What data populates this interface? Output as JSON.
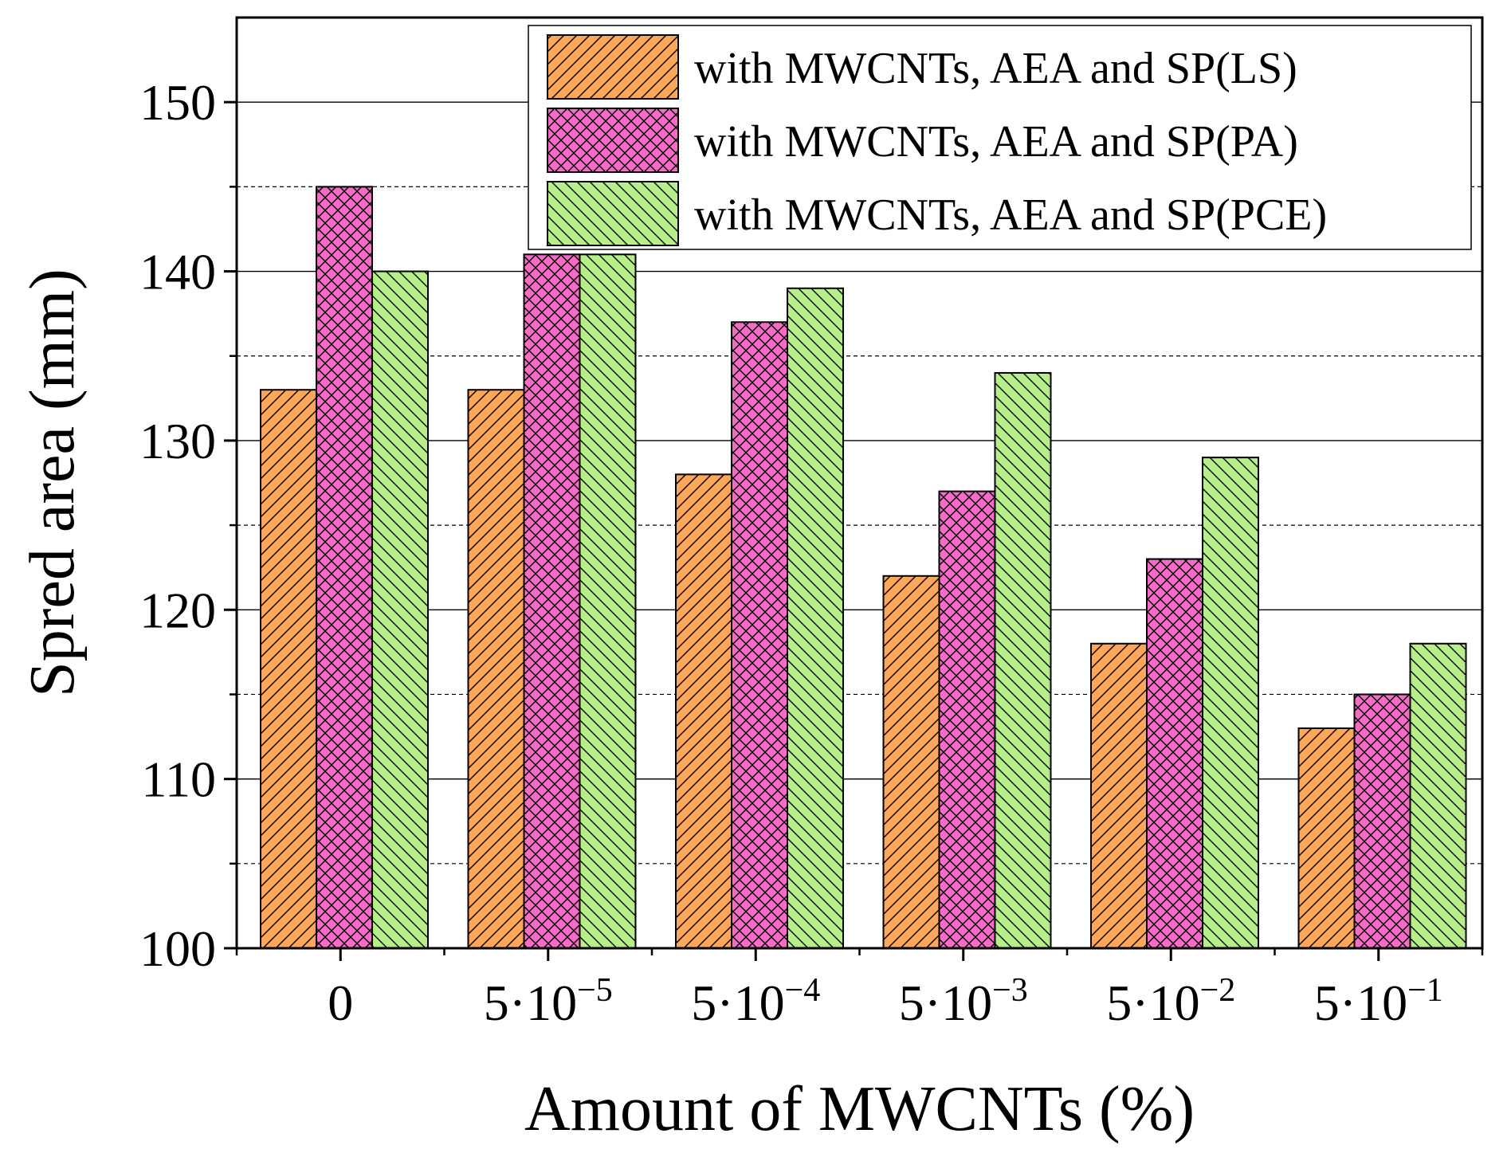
{
  "chart_data": {
    "type": "bar",
    "title": "",
    "xlabel": "Amount of MWCNTs (%)",
    "ylabel": "Spred area (mm)",
    "ylim": [
      100,
      155
    ],
    "yticks": [
      100,
      110,
      120,
      130,
      140,
      150
    ],
    "minor_gridlines": [
      105,
      115,
      125,
      135,
      145
    ],
    "categories": [
      {
        "base": "0",
        "exp": ""
      },
      {
        "base": "5·10",
        "exp": "−5"
      },
      {
        "base": "5·10",
        "exp": "−4"
      },
      {
        "base": "5·10",
        "exp": "−3"
      },
      {
        "base": "5·10",
        "exp": "−2"
      },
      {
        "base": "5·10",
        "exp": "−1"
      }
    ],
    "series": [
      {
        "name": "with MWCNTs, AEA and SP(LS)",
        "color": "#fca65a",
        "pattern": "diag-right",
        "values": [
          133,
          133,
          128,
          122,
          118,
          113
        ]
      },
      {
        "name": "with MWCNTs, AEA and SP(PA)",
        "color": "#f56cc6",
        "pattern": "crosshatch",
        "values": [
          145,
          141,
          137,
          127,
          123,
          115
        ]
      },
      {
        "name": "with MWCNTs, AEA and SP(PCE)",
        "color": "#b6ef87",
        "pattern": "diag-left",
        "values": [
          140,
          141,
          139,
          134,
          129,
          118
        ]
      }
    ],
    "legend_position": "top-right",
    "grid": true
  }
}
